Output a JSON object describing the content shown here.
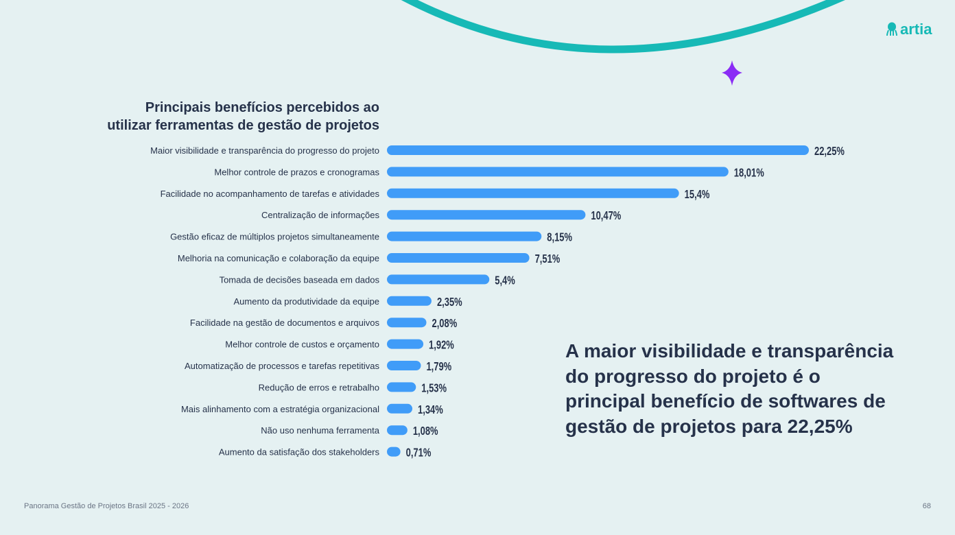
{
  "brand": {
    "name": "artia",
    "logo_icon": "octopus-icon",
    "color": "#17b9b6",
    "accent": "#8a2cf5"
  },
  "chart_data": {
    "type": "bar",
    "orientation": "horizontal",
    "title": "Principais benefícios percebidos ao utilizar ferramentas de gestão de projetos",
    "title_lines": [
      "Principais benefícios percebidos ao",
      "utilizar ferramentas de gestão de projetos"
    ],
    "categories": [
      "Maior visibilidade e transparência do progresso do projeto",
      "Melhor controle de prazos e cronogramas",
      "Facilidade no acompanhamento de tarefas e atividades",
      "Centralização de informações",
      "Gestão eficaz de múltiplos projetos simultaneamente",
      "Melhoria na comunicação e colaboração da equipe",
      "Tomada de decisões baseada em dados",
      "Aumento da produtividade da equipe",
      "Facilidade na gestão de documentos e arquivos",
      "Melhor controle de custos e orçamento",
      "Automatização de processos e tarefas repetitivas",
      "Redução de erros e retrabalho",
      "Mais alinhamento com a estratégia organizacional",
      "Não uso nenhuma ferramenta",
      "Aumento da satisfação dos stakeholders"
    ],
    "values": [
      22.25,
      18.01,
      15.4,
      10.47,
      8.15,
      7.51,
      5.4,
      2.35,
      2.08,
      1.92,
      1.79,
      1.53,
      1.34,
      1.08,
      0.71
    ],
    "data_labels": [
      "22,25%",
      "18,01%",
      "15,4%",
      "10,47%",
      "8,15%",
      "7,51%",
      "5,4%",
      "2,35%",
      "2,08%",
      "1,92%",
      "1,79%",
      "1,53%",
      "1,34%",
      "1,08%",
      "0,71%"
    ],
    "bar_color": "#409cf8",
    "grid": false,
    "axes_visible": false
  },
  "callout": "A maior visibilidade e transparência do progresso do projeto é o principal benefício de softwares de gestão de projetos para 22,25%",
  "footer": {
    "text": "Panorama Gestão de Projetos Brasil 2025 - 2026",
    "page": "68"
  }
}
